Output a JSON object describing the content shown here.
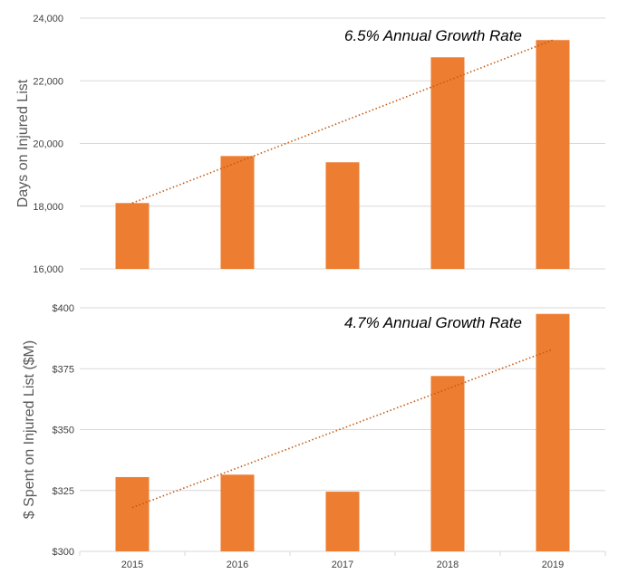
{
  "chart_data": [
    {
      "type": "bar",
      "categories": [
        "2015",
        "2016",
        "2017",
        "2018",
        "2019"
      ],
      "values": [
        18100,
        19600,
        19400,
        22750,
        23300
      ],
      "ylabel": "Days on Injured List",
      "ylim": [
        16000,
        24000
      ],
      "yticks": [
        "16,000",
        "18,000",
        "20,000",
        "22,000",
        "24,000"
      ],
      "annotation": "6.5% Annual Growth Rate",
      "trendline": [
        18100,
        23300
      ],
      "grid": true,
      "bar_color": "#ED7D31",
      "trend_color": "#C55A11"
    },
    {
      "type": "bar",
      "categories": [
        "2015",
        "2016",
        "2017",
        "2018",
        "2019"
      ],
      "values": [
        330.5,
        331.5,
        324.5,
        372,
        397.5
      ],
      "ylabel": "$ Spent on Injured List ($M)",
      "ylim": [
        300,
        400
      ],
      "yticks": [
        "$300",
        "$325",
        "$350",
        "$375",
        "$400"
      ],
      "annotation": "4.7% Annual Growth Rate",
      "trendline": [
        318,
        383
      ],
      "grid": true,
      "bar_color": "#ED7D31",
      "trend_color": "#C55A11"
    }
  ]
}
